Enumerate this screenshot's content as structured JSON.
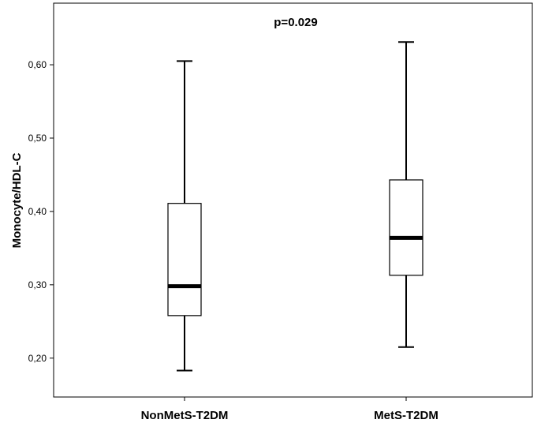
{
  "chart_data": {
    "type": "boxplot",
    "title": "",
    "annotation": "p=0.029",
    "xlabel": "",
    "ylabel": "Monocyte/HDL-C",
    "ylim": [
      0.147,
      0.684
    ],
    "yticks": [
      0.2,
      0.3,
      0.4,
      0.5,
      0.6
    ],
    "ytick_labels": [
      "0,20",
      "0,30",
      "0,40",
      "0,50",
      "0,60"
    ],
    "categories": [
      "NonMetS-T2DM",
      "MetS-T2DM"
    ],
    "boxes": [
      {
        "name": "NonMetS-T2DM",
        "min": 0.183,
        "q1": 0.258,
        "median": 0.298,
        "q3": 0.411,
        "max": 0.605
      },
      {
        "name": "MetS-T2DM",
        "min": 0.215,
        "q1": 0.313,
        "median": 0.364,
        "q3": 0.443,
        "max": 0.631
      }
    ]
  }
}
